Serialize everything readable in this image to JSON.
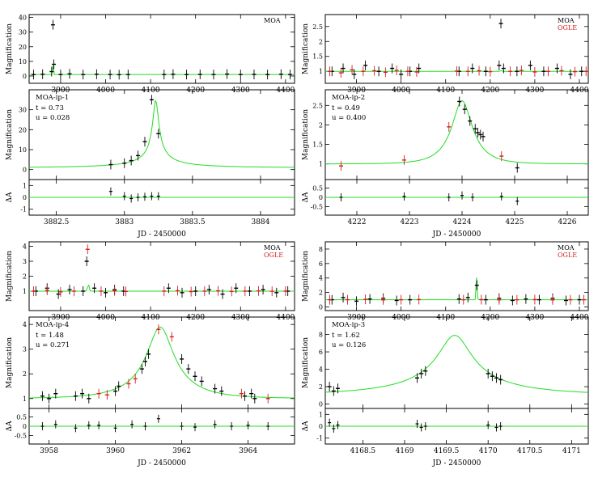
{
  "colors": {
    "moa": "#000000",
    "ogle": "#d42020",
    "model": "#22dd22"
  },
  "chart_data": [
    {
      "type": "scatter",
      "legend": [
        "MOA"
      ],
      "xlim": [
        3830,
        4420
      ],
      "ylim": [
        -5,
        42
      ],
      "xticks": [
        3900,
        4000,
        4100,
        4200,
        4300,
        4400
      ],
      "yticks": [
        0,
        10,
        20,
        30,
        40
      ],
      "ylabel": "Magnification",
      "xlabel": "",
      "series": [
        {
          "name": "MOA",
          "x": [
            3840,
            3860,
            3880,
            3883,
            3885,
            3900,
            3920,
            3950,
            3980,
            4010,
            4030,
            4050,
            4130,
            4150,
            4180,
            4210,
            4240,
            4270,
            4300,
            4330,
            4360,
            4390,
            4410
          ],
          "y": [
            1,
            1.2,
            3,
            35,
            8,
            1,
            1.5,
            1,
            1.2,
            1,
            0.9,
            1,
            1,
            1.2,
            1,
            1.1,
            1,
            1.3,
            1,
            1.1,
            1,
            1.2,
            1
          ]
        }
      ],
      "model": {
        "peak_x": 3883.2,
        "peak_y": 35,
        "tE": 0.73,
        "u0": 0.028,
        "base": 1
      }
    },
    {
      "type": "scatter",
      "legend": [
        "MOA",
        "OGLE"
      ],
      "xlim": [
        3830,
        4420
      ],
      "ylim": [
        0.6,
        2.9
      ],
      "xticks": [
        3900,
        4000,
        4100,
        4200,
        4300,
        4400
      ],
      "yticks": [
        1,
        1.5,
        2,
        2.5
      ],
      "ylabel": "Magnification",
      "xlabel": "",
      "series": [
        {
          "name": "MOA",
          "x": [
            3845,
            3870,
            3895,
            3920,
            3950,
            3980,
            4000,
            4020,
            4040,
            4130,
            4160,
            4190,
            4220,
            4224,
            4230,
            4260,
            4290,
            4320,
            4350,
            4380,
            4405
          ],
          "y": [
            1,
            1.1,
            0.9,
            1.2,
            1,
            1.1,
            0.9,
            1,
            1.1,
            1,
            1.1,
            1,
            1.2,
            2.6,
            1.1,
            1,
            1.2,
            1,
            1.1,
            0.9,
            1
          ]
        },
        {
          "name": "OGLE",
          "x": [
            3840,
            3865,
            3890,
            3915,
            3940,
            3965,
            3990,
            4015,
            4035,
            4125,
            4150,
            4175,
            4200,
            4245,
            4270,
            4300,
            4330,
            4360,
            4390,
            4415
          ],
          "y": [
            1,
            0.95,
            1.05,
            1,
            1.02,
            0.97,
            1.03,
            1,
            0.98,
            1.01,
            1,
            1.02,
            0.99,
            1,
            1.03,
            0.98,
            1,
            1.02,
            0.99,
            1
          ]
        }
      ],
      "model": {
        "peak_x": 4224,
        "peak_y": 2.6,
        "tE": 0.49,
        "u0": 0.4,
        "base": 1
      }
    },
    {
      "type": "line",
      "event": "MOA-ip-1",
      "params": [
        "t = 0.73",
        "u = 0.028"
      ],
      "xlim": [
        3882.3,
        3884.25
      ],
      "ylim": [
        -5,
        40
      ],
      "xticks": [
        3882.5,
        3883,
        3883.5,
        3884
      ],
      "yticks": [
        0,
        10,
        20,
        30
      ],
      "ylabel": "Magnification",
      "xlabel": "JD - 2450000",
      "series": [
        {
          "name": "MOA",
          "x": [
            3882.9,
            3883.0,
            3883.05,
            3883.1,
            3883.15,
            3883.2,
            3883.25
          ],
          "y": [
            2.5,
            3.2,
            4.5,
            7,
            14,
            35,
            18
          ]
        }
      ],
      "model": {
        "peak_x": 3883.23,
        "peak_y": 35,
        "tE": 0.73,
        "u0": 0.028,
        "base": 1
      },
      "resid": {
        "ylim": [
          -1.5,
          1.5
        ],
        "yticks": [
          -1,
          0,
          1
        ],
        "ylabel": "ΔA",
        "x": [
          3882.9,
          3883.0,
          3883.05,
          3883.1,
          3883.15,
          3883.2,
          3883.25
        ],
        "y": [
          0.5,
          0.1,
          -0.1,
          0,
          0.05,
          0.1,
          0.1
        ]
      }
    },
    {
      "type": "line",
      "event": "MOA-ip-2",
      "params": [
        "t = 0.49",
        "u = 0.400"
      ],
      "xlim": [
        4221.4,
        4226.4
      ],
      "ylim": [
        0.6,
        2.9
      ],
      "xticks": [
        4222,
        4223,
        4224,
        4225,
        4226
      ],
      "yticks": [
        1,
        1.5,
        2,
        2.5
      ],
      "ylabel": "Magnification",
      "xlabel": "JD - 2450000",
      "series": [
        {
          "name": "MOA",
          "x": [
            4223.95,
            4224.05,
            4224.15,
            4224.25,
            4224.3,
            4224.35,
            4224.4,
            4225.05
          ],
          "y": [
            2.6,
            2.4,
            2.1,
            1.9,
            1.8,
            1.75,
            1.7,
            0.9
          ]
        },
        {
          "name": "OGLE",
          "x": [
            4221.7,
            4222.9,
            4223.75,
            4224.75
          ],
          "y": [
            0.95,
            1.1,
            1.95,
            1.2
          ]
        }
      ],
      "model": {
        "peak_x": 4224.0,
        "peak_y": 2.62,
        "tE": 0.49,
        "u0": 0.4,
        "base": 1
      },
      "resid": {
        "ylim": [
          -0.95,
          0.95
        ],
        "yticks": [
          -0.5,
          0,
          0.5
        ],
        "ylabel": "ΔA",
        "x": [
          4221.7,
          4222.9,
          4223.75,
          4224.0,
          4224.2,
          4224.75,
          4225.05
        ],
        "y": [
          0,
          0.05,
          0,
          0.1,
          0,
          0.05,
          -0.2
        ]
      }
    },
    {
      "type": "scatter",
      "legend": [
        "MOA",
        "OGLE"
      ],
      "xlim": [
        3830,
        4420
      ],
      "ylim": [
        -0.3,
        4.3
      ],
      "xticks": [
        3900,
        4000,
        4100,
        4200,
        4300,
        4400
      ],
      "yticks": [
        1,
        2,
        3,
        4
      ],
      "ylabel": "Magnification",
      "xlabel": "",
      "series": [
        {
          "name": "MOA",
          "x": [
            3845,
            3870,
            3895,
            3920,
            3950,
            3958,
            3975,
            4000,
            4020,
            4040,
            4140,
            4170,
            4200,
            4230,
            4260,
            4290,
            4320,
            4350,
            4380,
            4405
          ],
          "y": [
            1,
            1.2,
            0.8,
            1.1,
            1,
            3,
            1.2,
            0.9,
            1.1,
            1,
            1.2,
            0.9,
            1,
            1.1,
            0.8,
            1.2,
            1,
            1.1,
            0.9,
            1
          ]
        },
        {
          "name": "OGLE",
          "x": [
            3840,
            3870,
            3900,
            3930,
            3960,
            3990,
            4020,
            4045,
            4130,
            4160,
            4190,
            4220,
            4250,
            4280,
            4310,
            4340,
            4370,
            4400
          ],
          "y": [
            1,
            1.05,
            0.95,
            1,
            3.8,
            1,
            1.02,
            0.98,
            1,
            1.03,
            0.97,
            1,
            1.02,
            0.98,
            1,
            1.01,
            0.99,
            1
          ]
        }
      ],
      "model": {
        "peak_x": 3961.4,
        "peak_y": 3.9,
        "tE": 1.48,
        "u0": 0.271,
        "base": 1
      }
    },
    {
      "type": "scatter",
      "legend": [
        "MOA",
        "OGLE"
      ],
      "xlim": [
        3830,
        4420
      ],
      "ylim": [
        -0.5,
        9
      ],
      "xticks": [
        3900,
        4000,
        4100,
        4200,
        4300,
        4400
      ],
      "yticks": [
        0,
        2,
        4,
        6,
        8
      ],
      "ylabel": "Magnification",
      "xlabel": "",
      "series": [
        {
          "name": "MOA",
          "x": [
            3845,
            3870,
            3900,
            3930,
            3960,
            3990,
            4020,
            4130,
            4150,
            4170,
            4190,
            4220,
            4250,
            4280,
            4310,
            4340,
            4370,
            4400
          ],
          "y": [
            1,
            1.3,
            0.8,
            1.1,
            1.2,
            0.9,
            1,
            1.1,
            1.3,
            3,
            1,
            1.2,
            0.9,
            1.1,
            1,
            1.2,
            0.9,
            1
          ]
        },
        {
          "name": "OGLE",
          "x": [
            3840,
            3880,
            3920,
            3960,
            4000,
            4040,
            4140,
            4180,
            4220,
            4260,
            4300,
            4340,
            4380,
            4410
          ],
          "y": [
            1,
            1,
            1.05,
            0.98,
            1,
            1.02,
            1,
            1.01,
            0.99,
            1,
            1.02,
            0.98,
            1,
            1
          ]
        }
      ],
      "model": {
        "peak_x": 4169.6,
        "peak_y": 7.9,
        "tE": 1.62,
        "u0": 0.126,
        "base": 1
      }
    },
    {
      "type": "line",
      "event": "MOA-ip-4",
      "params": [
        "t = 1.48",
        "u = 0.271"
      ],
      "xlim": [
        3957.4,
        3965.4
      ],
      "ylim": [
        0.6,
        4.3
      ],
      "xticks": [
        3958,
        3960,
        3962,
        3964
      ],
      "yticks": [
        1,
        2,
        3,
        4
      ],
      "ylabel": "Magnification",
      "xlabel": "JD - 2450000",
      "series": [
        {
          "name": "MOA",
          "x": [
            3957.8,
            3958.0,
            3958.2,
            3958.8,
            3959.0,
            3959.2,
            3960.0,
            3960.1,
            3960.8,
            3960.9,
            3961.0,
            3962.0,
            3962.2,
            3962.4,
            3962.6,
            3963.0,
            3963.2,
            3963.9,
            3964.1,
            3964.2
          ],
          "y": [
            1.1,
            1.0,
            1.2,
            1.1,
            1.2,
            1.0,
            1.3,
            1.5,
            2.2,
            2.5,
            2.8,
            2.6,
            2.2,
            1.9,
            1.7,
            1.4,
            1.3,
            1.1,
            1.2,
            1.0
          ]
        },
        {
          "name": "OGLE",
          "x": [
            3959.5,
            3959.75,
            3960.4,
            3960.6,
            3961.3,
            3961.7,
            3963.8,
            3964.6
          ],
          "y": [
            1.2,
            1.15,
            1.6,
            1.8,
            3.8,
            3.5,
            1.2,
            1.0
          ]
        }
      ],
      "model": {
        "peak_x": 3961.35,
        "peak_y": 3.9,
        "tE": 1.48,
        "u0": 0.271,
        "base": 1
      },
      "resid": {
        "ylim": [
          -0.95,
          0.95
        ],
        "yticks": [
          -0.5,
          0,
          0.5
        ],
        "ylabel": "ΔA",
        "x": [
          3957.8,
          3958.2,
          3958.8,
          3959.2,
          3959.5,
          3960.0,
          3960.5,
          3960.9,
          3961.3,
          3962.0,
          3962.4,
          3963.0,
          3963.5,
          3964.0,
          3964.6
        ],
        "y": [
          0,
          0.1,
          -0.1,
          0.05,
          0.05,
          -0.1,
          0.1,
          0,
          0.4,
          0,
          -0.05,
          0.1,
          0,
          0.05,
          0
        ]
      }
    },
    {
      "type": "line",
      "event": "MOA-ip-3",
      "params": [
        "t = 1.62",
        "u = 0.126"
      ],
      "xlim": [
        4168.05,
        4171.2
      ],
      "ylim": [
        -0.5,
        10
      ],
      "xticks": [
        4168.5,
        4169,
        4169.5,
        4170,
        4170.5,
        4171
      ],
      "yticks": [
        0,
        2,
        4,
        6,
        8
      ],
      "ylabel": "Magnification",
      "xlabel": "JD - 2450000",
      "series": [
        {
          "name": "MOA",
          "x": [
            4168.1,
            4168.15,
            4168.2,
            4169.15,
            4169.2,
            4169.25,
            4170.0,
            4170.05,
            4170.1,
            4170.15
          ],
          "y": [
            2.0,
            1.5,
            1.8,
            3.0,
            3.5,
            3.8,
            3.5,
            3.2,
            3.0,
            2.8
          ]
        }
      ],
      "model": {
        "peak_x": 4169.6,
        "peak_y": 7.9,
        "tE": 1.62,
        "u0": 0.126,
        "base": 1
      },
      "resid": {
        "ylim": [
          -1.5,
          1.5
        ],
        "yticks": [
          -1,
          0,
          1
        ],
        "ylabel": "ΔA",
        "x": [
          4168.1,
          4168.15,
          4168.2,
          4169.15,
          4169.2,
          4169.25,
          4170.0,
          4170.1,
          4170.15
        ],
        "y": [
          0.3,
          -0.2,
          0.1,
          0.2,
          -0.1,
          0,
          0.1,
          -0.1,
          0
        ]
      }
    }
  ]
}
